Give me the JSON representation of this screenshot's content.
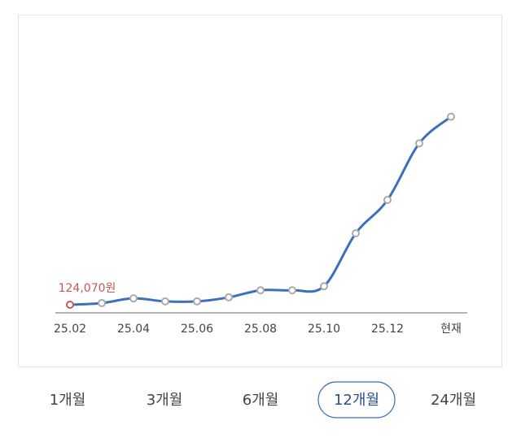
{
  "chart_data": {
    "type": "line",
    "categories": [
      "25.02",
      null,
      "25.04",
      null,
      "25.06",
      null,
      "25.08",
      null,
      "25.10",
      null,
      "25.12",
      null,
      "현재"
    ],
    "values": [
      124070,
      129000,
      143000,
      134000,
      134000,
      146000,
      167000,
      167000,
      179000,
      336000,
      435000,
      603000,
      682000
    ],
    "value_labels": [
      "124,070원",
      null,
      null,
      null,
      null,
      null,
      null,
      null,
      null,
      null,
      null,
      null,
      null
    ],
    "color": "#3d6fbf",
    "first_point_color": "#c8585a",
    "ylim": [
      100000,
      980000
    ]
  },
  "tabs": {
    "options": [
      "1개월",
      "3개월",
      "6개월",
      "12개월",
      "24개월"
    ],
    "selected": 3
  }
}
